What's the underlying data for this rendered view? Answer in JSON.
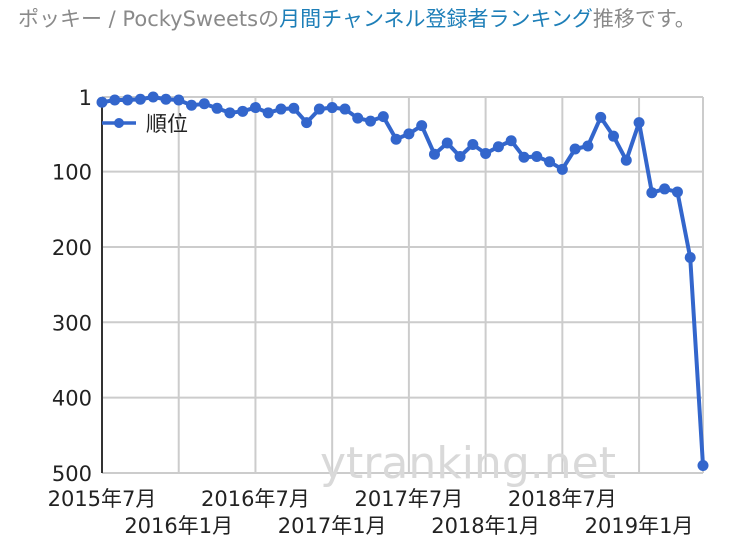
{
  "caption": {
    "prefix": "ポッキー / PockySweetsの",
    "link": "月間チャンネル登録者ランキング",
    "suffix": "推移です。"
  },
  "watermark": "ytranking.net",
  "colors": {
    "series": "#3366cc",
    "grid": "#cccccc",
    "caption": "#8a8a8a",
    "link": "#1e7fb8"
  },
  "chart_data": {
    "type": "line",
    "title": "",
    "xlabel": "",
    "ylabel": "",
    "y_reversed": true,
    "ylim": [
      1,
      500
    ],
    "y_ticks": [
      1,
      100,
      200,
      300,
      400,
      500
    ],
    "grid": true,
    "legend_position": "top-left (inside plot)",
    "x_ticks_row1": [
      "2015年7月",
      "2016年7月",
      "2017年7月",
      "2018年7月"
    ],
    "x_ticks_row2": [
      "2016年1月",
      "2017年1月",
      "2018年1月",
      "2019年1月"
    ],
    "x": [
      "2015-07",
      "2015-08",
      "2015-09",
      "2015-10",
      "2015-11",
      "2015-12",
      "2016-01",
      "2016-02",
      "2016-03",
      "2016-04",
      "2016-05",
      "2016-06",
      "2016-07",
      "2016-08",
      "2016-09",
      "2016-10",
      "2016-11",
      "2016-12",
      "2017-01",
      "2017-02",
      "2017-03",
      "2017-04",
      "2017-05",
      "2017-06",
      "2017-07",
      "2017-08",
      "2017-09",
      "2017-10",
      "2017-11",
      "2017-12",
      "2018-01",
      "2018-02",
      "2018-03",
      "2018-04",
      "2018-05",
      "2018-06",
      "2018-07",
      "2018-08",
      "2018-09",
      "2018-10",
      "2018-11",
      "2018-12",
      "2019-01",
      "2019-02",
      "2019-03",
      "2019-04",
      "2019-05",
      "2019-06"
    ],
    "series": [
      {
        "name": "順位",
        "values": [
          8,
          5,
          5,
          4,
          1,
          4,
          5,
          12,
          10,
          16,
          22,
          20,
          15,
          22,
          17,
          16,
          35,
          17,
          15,
          17,
          29,
          33,
          27,
          57,
          50,
          39,
          77,
          62,
          80,
          64,
          76,
          67,
          59,
          81,
          80,
          87,
          97,
          70,
          66,
          28,
          53,
          85,
          35,
          128,
          123,
          127,
          214,
          490
        ]
      }
    ]
  }
}
